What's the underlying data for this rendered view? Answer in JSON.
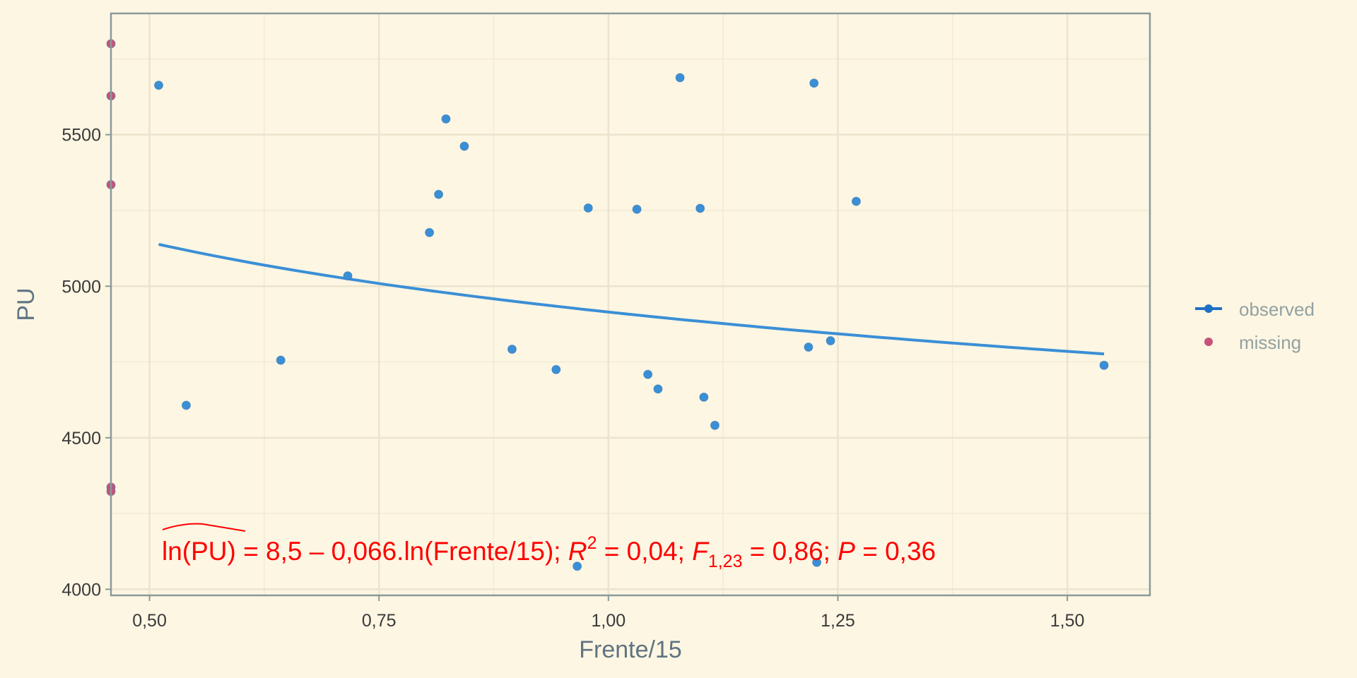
{
  "chart_data": {
    "type": "scatter",
    "xlabel": "Frente/15",
    "ylabel": "PU",
    "xlim": [
      0.458,
      1.59
    ],
    "ylim": [
      3980,
      5900
    ],
    "x_ticks": [
      0.5,
      0.75,
      1.0,
      1.25,
      1.5
    ],
    "x_tick_labels": [
      "0,50",
      "0,75",
      "1,00",
      "1,25",
      "1,50"
    ],
    "y_ticks": [
      4000,
      4500,
      5000,
      5500
    ],
    "y_tick_labels": [
      "4000",
      "4500",
      "5000",
      "5500"
    ],
    "grid": true,
    "legend_position": "right",
    "series": [
      {
        "name": "observed",
        "color": "#3a8fd6",
        "points": [
          {
            "x": 0.51,
            "y": 5663
          },
          {
            "x": 0.54,
            "y": 4607
          },
          {
            "x": 0.643,
            "y": 4756
          },
          {
            "x": 0.716,
            "y": 5034
          },
          {
            "x": 0.805,
            "y": 5177
          },
          {
            "x": 0.815,
            "y": 5303
          },
          {
            "x": 0.823,
            "y": 5552
          },
          {
            "x": 0.843,
            "y": 5462
          },
          {
            "x": 0.895,
            "y": 4792
          },
          {
            "x": 0.943,
            "y": 4725
          },
          {
            "x": 0.966,
            "y": 4076
          },
          {
            "x": 0.978,
            "y": 5258
          },
          {
            "x": 1.031,
            "y": 5254
          },
          {
            "x": 1.043,
            "y": 4709
          },
          {
            "x": 1.054,
            "y": 4661
          },
          {
            "x": 1.078,
            "y": 5688
          },
          {
            "x": 1.1,
            "y": 5257
          },
          {
            "x": 1.104,
            "y": 4634
          },
          {
            "x": 1.116,
            "y": 4541
          },
          {
            "x": 1.218,
            "y": 4799
          },
          {
            "x": 1.224,
            "y": 5670
          },
          {
            "x": 1.227,
            "y": 4089
          },
          {
            "x": 1.242,
            "y": 4820
          },
          {
            "x": 1.27,
            "y": 5280
          },
          {
            "x": 1.54,
            "y": 4739
          }
        ]
      },
      {
        "name": "missing",
        "color": "#c5537a",
        "points": [
          {
            "x": 0.458,
            "y": 5800
          },
          {
            "x": 0.458,
            "y": 5628
          },
          {
            "x": 0.458,
            "y": 5335
          },
          {
            "x": 0.458,
            "y": 4337
          },
          {
            "x": 0.458,
            "y": 4323
          }
        ]
      }
    ],
    "fit_line": {
      "color": "#3a8fd6",
      "intercept_log": 8.5,
      "slope_log": -0.066,
      "x_range": [
        0.51,
        1.54
      ]
    },
    "annotation": {
      "lhs": "ln(PU)",
      "rhs_1": " = 8,5 – 0,066.ln(Frente/15); ",
      "r_sym": "R",
      "r_sup": "2",
      "rhs_2": " = 0,04; ",
      "f_sym": "F",
      "f_sub": "1,23",
      "rhs_3": " = 0,86; ",
      "p_sym": "P",
      "rhs_4": " = 0,36",
      "color": "#ff0000"
    }
  }
}
